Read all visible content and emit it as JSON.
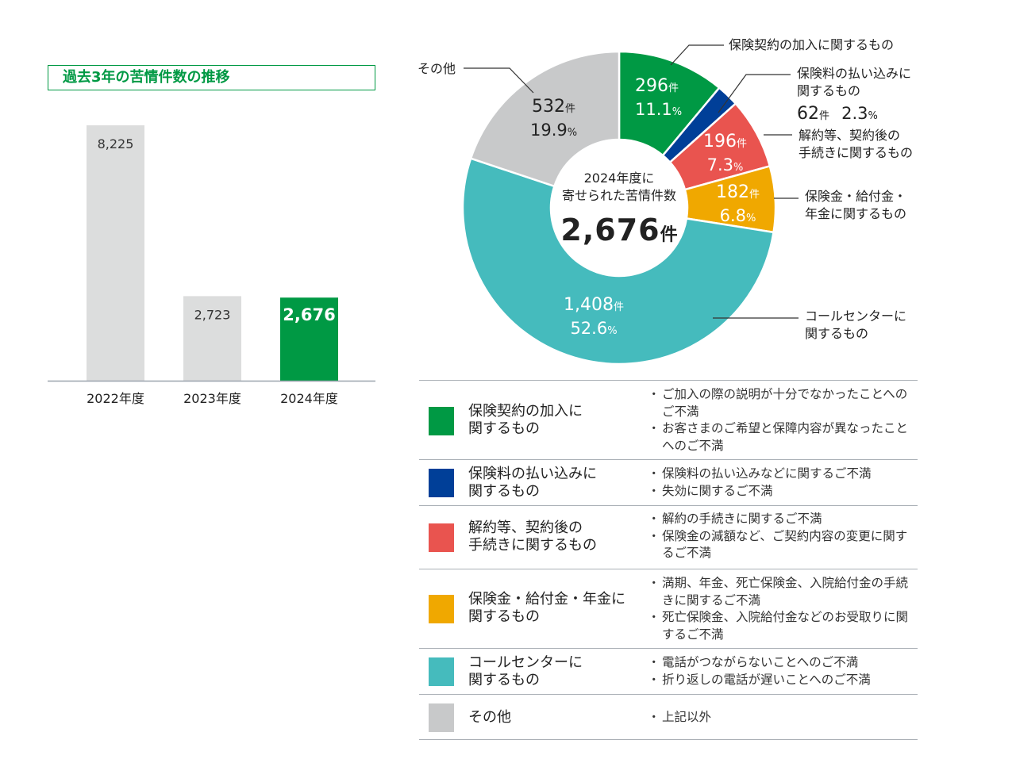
{
  "bar_section": {
    "title": "過去3年の苦情件数の推移"
  },
  "donut_center": {
    "line1": "2024年度に",
    "line2": "寄せられた苦情件数",
    "total": "2,676",
    "unit": "件"
  },
  "colors": {
    "green": "#009944",
    "blue": "#003f98",
    "red": "#e9544f",
    "yellow": "#f0a800",
    "teal": "#45bbbd",
    "gray": "#c8c9ca",
    "bar_gray": "#dcdddd"
  },
  "chart_data": [
    {
      "type": "bar",
      "title": "過去3年の苦情件数の推移",
      "categories": [
        "2022年度",
        "2023年度",
        "2024年度"
      ],
      "values": [
        8225,
        2723,
        2676
      ],
      "value_labels": [
        "8,225",
        "2,723",
        "2,676"
      ],
      "highlight_index": 2,
      "ylim": [
        0,
        8225
      ],
      "grid": false
    },
    {
      "type": "pie",
      "donut": true,
      "total": 2676,
      "series": [
        {
          "key": "kanyuu",
          "name": "保険契約の加入に関するもの",
          "count": 296,
          "count_label": "296",
          "percent": "11.1",
          "color": "#009944"
        },
        {
          "key": "haraikomi",
          "name": "保険料の払い込みに関するもの",
          "count": 62,
          "count_label": "62",
          "percent": "2.3",
          "color": "#003f98"
        },
        {
          "key": "kaiyaku",
          "name": "解約等、契約後の手続きに関するもの",
          "count": 196,
          "count_label": "196",
          "percent": "7.3",
          "color": "#e9544f"
        },
        {
          "key": "hokenkin",
          "name": "保険金・給付金・年金に関するもの",
          "count": 182,
          "count_label": "182",
          "percent": "6.8",
          "color": "#f0a800"
        },
        {
          "key": "call",
          "name": "コールセンターに関するもの",
          "count": 1408,
          "count_label": "1,408",
          "percent": "52.6",
          "color": "#45bbbd"
        },
        {
          "key": "other",
          "name": "その他",
          "count": 532,
          "count_label": "532",
          "percent": "19.9",
          "color": "#c8c9ca"
        }
      ]
    }
  ],
  "callouts": {
    "kanyuu": "保険契約の加入に関するもの",
    "haraikomi_1": "保険料の払い込みに",
    "haraikomi_2": "関するもの",
    "haraikomi_value": "62",
    "haraikomi_unit": "件",
    "haraikomi_pct": "2.3",
    "kaiyaku_1": "解約等、契約後の",
    "kaiyaku_2": "手続きに関するもの",
    "hokenkin_1": "保険金・給付金・",
    "hokenkin_2": "年金に関するもの",
    "call_1": "コールセンターに",
    "call_2": "関するもの",
    "other": "その他"
  },
  "units": {
    "ken": "件",
    "pct": "%"
  },
  "legend": [
    {
      "color": "#009944",
      "cat_1": "保険契約の加入に",
      "cat_2": "関するもの",
      "items": [
        "ご加入の際の説明が十分でなかったことへのご不満",
        "お客さまのご希望と保障内容が異なったことへのご不満"
      ]
    },
    {
      "color": "#003f98",
      "cat_1": "保険料の払い込みに",
      "cat_2": "関するもの",
      "items": [
        "保険料の払い込みなどに関するご不満",
        "失効に関するご不満"
      ]
    },
    {
      "color": "#e9544f",
      "cat_1": "解約等、契約後の",
      "cat_2": "手続きに関するもの",
      "items": [
        "解約の手続きに関するご不満",
        "保険金の減額など、ご契約内容の変更に関するご不満"
      ]
    },
    {
      "color": "#f0a800",
      "cat_1": "保険金・給付金・年金に",
      "cat_2": "関するもの",
      "items": [
        "満期、年金、死亡保険金、入院給付金の手続きに関するご不満",
        "死亡保険金、入院給付金などのお受取りに関するご不満"
      ]
    },
    {
      "color": "#45bbbd",
      "cat_1": "コールセンターに",
      "cat_2": "関するもの",
      "items": [
        "電話がつながらないことへのご不満",
        "折り返しの電話が遅いことへのご不満"
      ]
    },
    {
      "color": "#c8c9ca",
      "cat_1": "その他",
      "cat_2": "",
      "items": [
        "上記以外"
      ]
    }
  ]
}
